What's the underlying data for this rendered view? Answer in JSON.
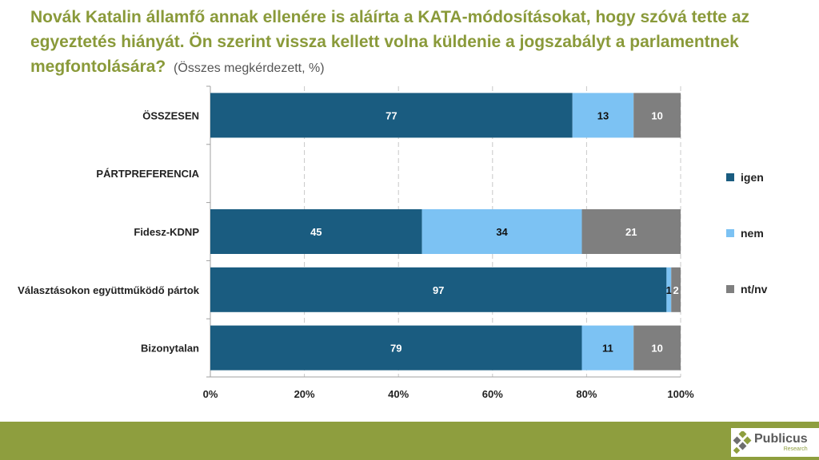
{
  "title": {
    "main": "Novák Katalin államfő annak ellenére is aláírta a KATA-módosításokat, hogy szóvá tette az egyeztetés hiányát. Ön szerint vissza kellett volna küldenie a jogszabályt a parlamentnek megfontolására?",
    "subtitle": "(Összes megkérdezett, %)"
  },
  "chart_data": {
    "type": "bar",
    "orientation": "horizontal",
    "stacked": true,
    "categories": [
      "ÖSSZESEN",
      "PÁRTPREFERENCIA",
      "Fidesz-KDNP",
      "Választásokon együttműködő pártok",
      "Bizonytalan"
    ],
    "series": [
      {
        "name": "igen",
        "values": [
          77,
          null,
          45,
          97,
          79
        ]
      },
      {
        "name": "nem",
        "values": [
          13,
          null,
          34,
          1,
          11
        ]
      },
      {
        "name": "nt/nv",
        "values": [
          10,
          null,
          21,
          2,
          10
        ]
      }
    ],
    "colors": {
      "igen": "#1a5c80",
      "nem": "#7cc2f3",
      "nt/nv": "#7f7f7f"
    },
    "xlim": [
      0,
      100
    ],
    "xticks": [
      "0%",
      "20%",
      "40%",
      "60%",
      "80%",
      "100%"
    ],
    "grid": true,
    "legend": "right"
  },
  "legend": {
    "items": [
      {
        "label": "igen",
        "color": "#1a5c80"
      },
      {
        "label": "nem",
        "color": "#7cc2f3"
      },
      {
        "label": "nt/nv",
        "color": "#7f7f7f"
      }
    ]
  },
  "logo": {
    "name": "Publicus",
    "sub": "Research"
  }
}
